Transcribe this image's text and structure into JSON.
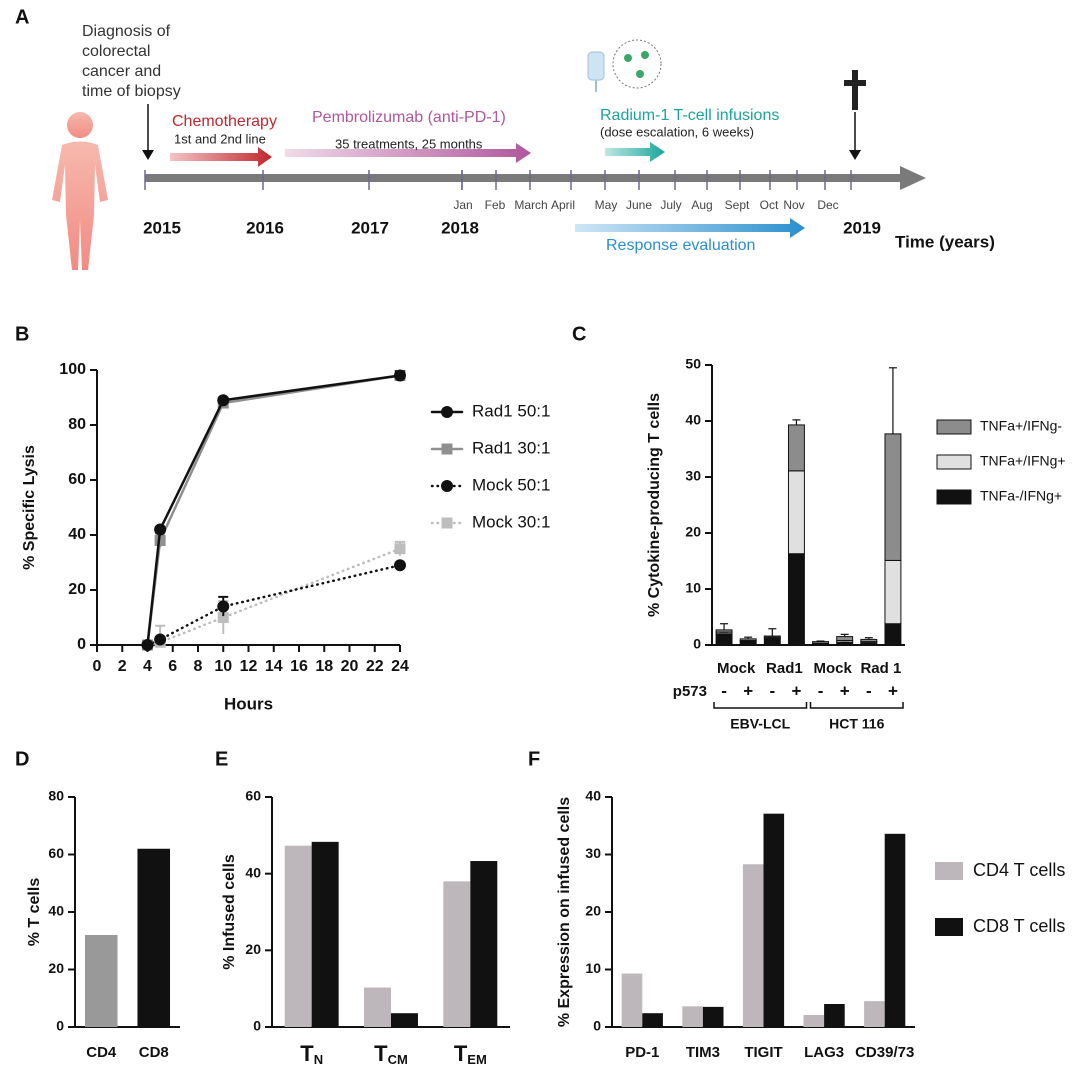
{
  "panel_labels": [
    "A",
    "B",
    "C",
    "D",
    "E",
    "F"
  ],
  "timeline": {
    "diagnosis": [
      "Diagnosis of",
      "colorectal",
      "cancer and",
      "time of biopsy"
    ],
    "phases": [
      {
        "name": "Chemotherapy",
        "detail": "1st and 2nd line"
      },
      {
        "name": "Pembrolizumab (anti-PD-1)",
        "detail": "35 treatments, 25 months"
      },
      {
        "name": "Radium-1 T-cell infusions",
        "detail": "(dose escalation, 6 weeks)"
      }
    ],
    "evaluation": "Response evaluation",
    "years": [
      "2015",
      "2016",
      "2017",
      "2018",
      "2019"
    ],
    "months": [
      "Jan",
      "Feb",
      "March",
      "April",
      "May",
      "June",
      "July",
      "Aug",
      "Sept",
      "Oct",
      "Nov",
      "Dec"
    ],
    "axis_label": "Time (years)"
  },
  "chart_data": [
    {
      "type": "line",
      "xlabel": "Hours",
      "ylabel": "% Specific Lysis",
      "x": [
        4,
        5,
        10,
        24
      ],
      "xlim": [
        0,
        24
      ],
      "xticks": [
        0,
        2,
        4,
        6,
        8,
        10,
        12,
        14,
        16,
        18,
        20,
        22,
        24
      ],
      "ylim": [
        0,
        100
      ],
      "yticks": [
        0,
        20,
        40,
        60,
        80,
        100
      ],
      "legend": "right",
      "series": [
        {
          "name": "Rad1 50:1",
          "color": "#111111",
          "marker": "circle",
          "line": "solid",
          "values": [
            0,
            42,
            89,
            98
          ],
          "errors": [
            0,
            0.5,
            1,
            1.5
          ]
        },
        {
          "name": "Rad1 30:1",
          "color": "#8f8f8f",
          "marker": "square",
          "line": "solid",
          "values": [
            0,
            38,
            88,
            98
          ],
          "errors": [
            0,
            2.5,
            1.5,
            1.5
          ]
        },
        {
          "name": "Mock 50:1",
          "color": "#111111",
          "marker": "circle",
          "line": "dotted",
          "values": [
            0,
            2,
            14,
            29
          ],
          "errors": [
            0,
            0.5,
            3.5,
            0.5
          ]
        },
        {
          "name": "Mock 30:1",
          "color": "#bdbdbd",
          "marker": "square",
          "line": "dotted",
          "values": [
            0,
            1,
            10,
            35
          ],
          "errors": [
            0,
            6,
            6,
            2.5
          ]
        }
      ]
    },
    {
      "type": "stacked_bar",
      "ylabel": "% Cytokine-producing T cells",
      "categories": [
        "Mock",
        null,
        "Rad1",
        null,
        "Mock",
        null,
        "Rad 1",
        null
      ],
      "condition_label": "p573",
      "conditions": [
        "-",
        "+",
        "-",
        "+",
        "-",
        "+",
        "-",
        "+"
      ],
      "groups": [
        "EBV-LCL",
        "HCT 116"
      ],
      "ylim": [
        0,
        50
      ],
      "yticks": [
        0,
        10,
        20,
        30,
        40,
        50
      ],
      "legend": "right",
      "series": [
        {
          "name": "TNFa-/IFNg+",
          "color": "#111111",
          "values": [
            2,
            0.7,
            1.2,
            16.3,
            0.2,
            0.5,
            0.4,
            3.8
          ],
          "errors": [
            0.5,
            0.2,
            0.3,
            0.4,
            0,
            0,
            0,
            4.7
          ]
        },
        {
          "name": "TNFa+/IFNg+",
          "color": "#e0e0e0",
          "values": [
            0.3,
            0.1,
            0.2,
            14.8,
            0.1,
            0.3,
            0.2,
            11.3
          ],
          "errors": [
            0,
            0,
            0,
            0.3,
            0,
            0,
            0,
            11
          ]
        },
        {
          "name": "TNFa+/IFNg-",
          "color": "#8c8c8c",
          "values": [
            0.4,
            0.3,
            0.2,
            8.2,
            0.3,
            0.7,
            0.4,
            22.6
          ],
          "errors": [
            1.1,
            0.3,
            1.3,
            0.9,
            0.1,
            0.4,
            0.3,
            11.8
          ]
        }
      ]
    },
    {
      "type": "bar",
      "ylabel": "% T cells",
      "categories": [
        "CD4",
        "CD8"
      ],
      "values": [
        32,
        62
      ],
      "colors": [
        "#999999",
        "#111111"
      ],
      "ylim": [
        0,
        80
      ],
      "yticks": [
        0,
        20,
        40,
        60,
        80
      ]
    },
    {
      "type": "grouped_bar",
      "ylabel": "% Infused cells",
      "categories": [
        {
          "text": "T",
          "subscript": "N"
        },
        {
          "text": "T",
          "subscript": "CM"
        },
        {
          "text": "T",
          "subscript": "EM"
        }
      ],
      "ylim": [
        0,
        60
      ],
      "yticks": [
        0,
        20,
        40,
        60
      ],
      "series": [
        {
          "color": "#bdb7bc",
          "values": [
            47.3,
            10.3,
            38
          ]
        },
        {
          "color": "#111111",
          "values": [
            48.3,
            3.6,
            43.3
          ]
        }
      ]
    },
    {
      "type": "grouped_bar",
      "ylabel": "% Expression on infused cells",
      "categories": [
        "PD-1",
        "TIM3",
        "TIGIT",
        "LAG3",
        "CD39/73"
      ],
      "ylim": [
        0,
        40
      ],
      "yticks": [
        0,
        10,
        20,
        30,
        40
      ],
      "legend": "right",
      "series": [
        {
          "name": "CD4 T cells",
          "color": "#bdb7bc",
          "values": [
            9.3,
            3.6,
            28.3,
            2.1,
            4.5
          ]
        },
        {
          "name": "CD8 T cells",
          "color": "#111111",
          "values": [
            2.4,
            3.5,
            37.1,
            4,
            33.6
          ]
        }
      ]
    }
  ]
}
